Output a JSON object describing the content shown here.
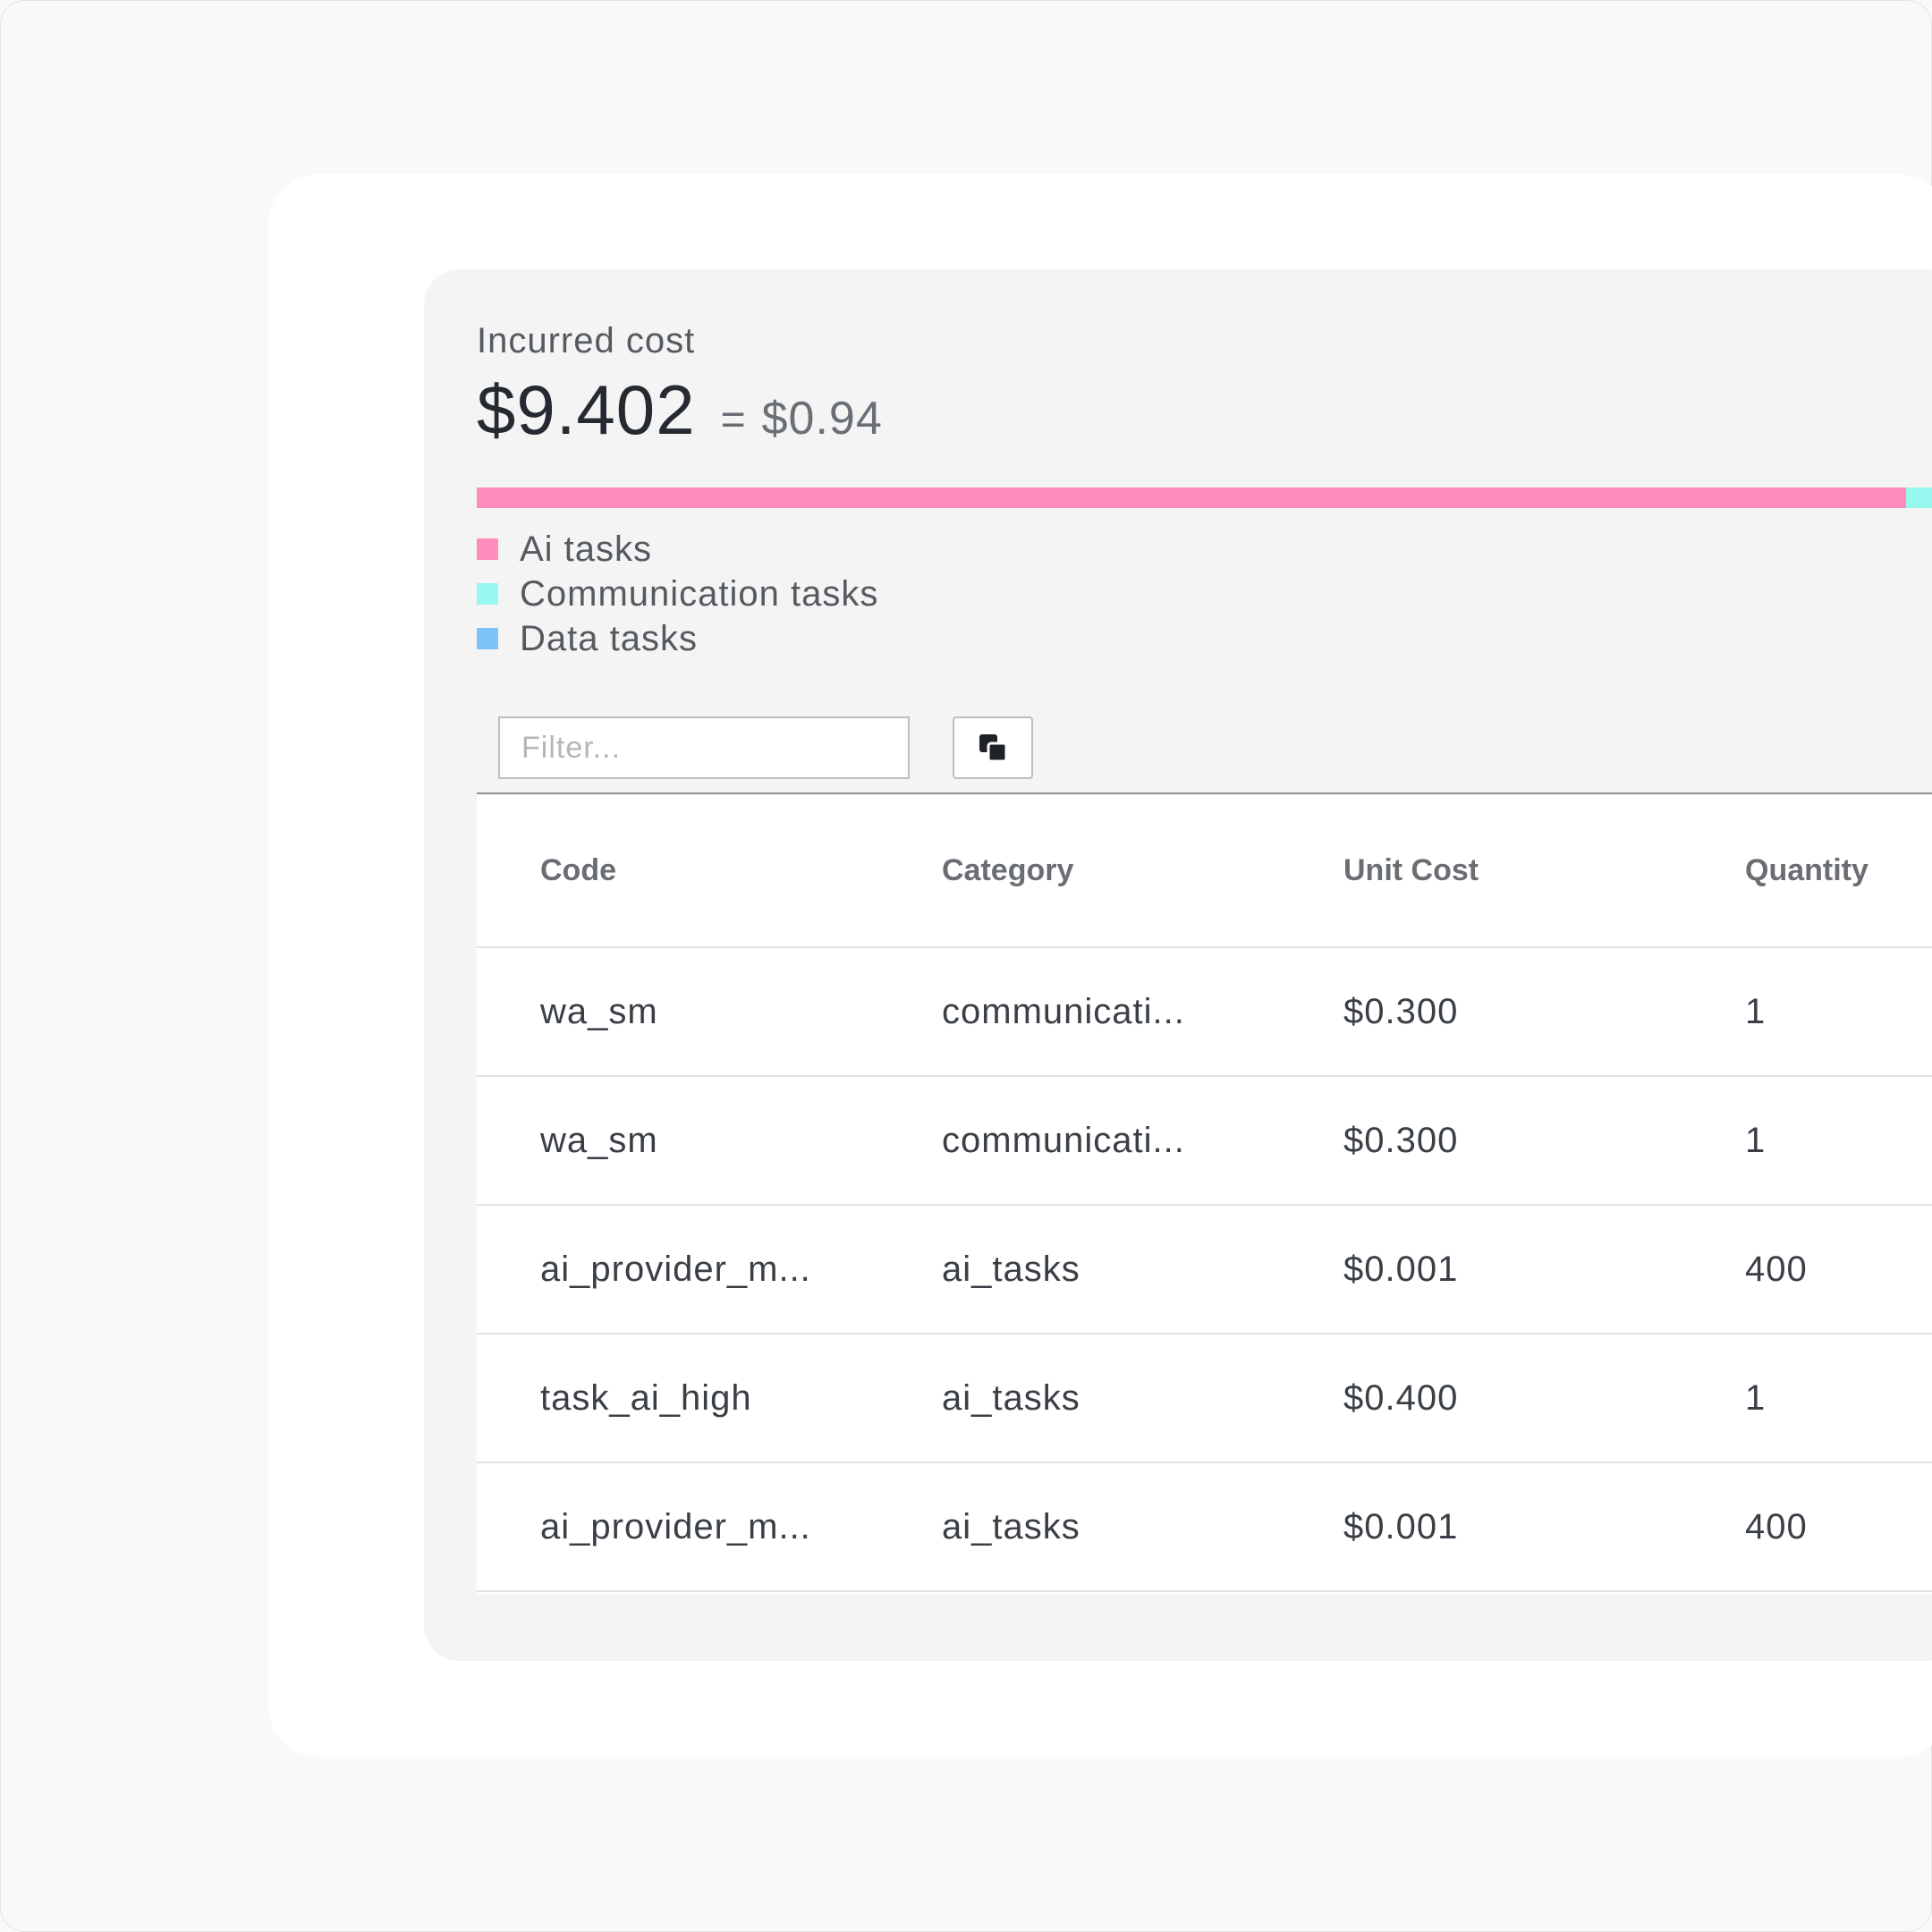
{
  "cost": {
    "title": "Incurred cost",
    "amount": "$9.402",
    "equals": "=",
    "converted": "$0.94"
  },
  "breakdown": [
    {
      "label": "Ai tasks",
      "share": 0.94,
      "color": "#ff8dbb"
    },
    {
      "label": "Communication tasks",
      "share": 0.05,
      "color": "#96f8ef"
    },
    {
      "label": "Data tasks",
      "share": 0.01,
      "color": "#7fc4f8"
    }
  ],
  "filter": {
    "placeholder": "Filter..."
  },
  "toolbar": {
    "copy_icon": "copy-icon"
  },
  "table": {
    "headers": [
      "Code",
      "Category",
      "Unit Cost",
      "Quantity"
    ],
    "rows": [
      [
        "wa_sm",
        "communicati...",
        "$0.300",
        "1"
      ],
      [
        "wa_sm",
        "communicati...",
        "$0.300",
        "1"
      ],
      [
        "ai_provider_m...",
        "ai_tasks",
        "$0.001",
        "400"
      ],
      [
        "task_ai_high",
        "ai_tasks",
        "$0.400",
        "1"
      ],
      [
        "ai_provider_m...",
        "ai_tasks",
        "$0.001",
        "400"
      ]
    ]
  }
}
